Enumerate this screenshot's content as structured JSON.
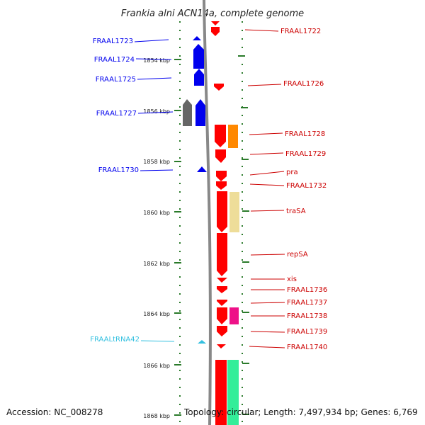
{
  "title": "Frankia alni ACN14a, complete genome",
  "footer": {
    "accession": "Accession: NC_008278",
    "topology": "Topology: circular; Length: 7,497,934 bp; Genes: 6,769"
  },
  "colors": {
    "minus_strand": "#0000ee",
    "plus_strand": "#ff0000",
    "trna": "#33c0e0",
    "tick": "#2a7a2a",
    "backbone": "#888888"
  },
  "kbp_ticks": [
    "1854 kbp",
    "1856 kbp",
    "1858 kbp",
    "1860 kbp",
    "1862 kbp",
    "1864 kbp",
    "1866 kbp",
    "1868 kbp"
  ],
  "genes_left": [
    {
      "name": "FRAAL1723",
      "color": "#0000ee"
    },
    {
      "name": "FRAAL1724",
      "color": "#0000ee"
    },
    {
      "name": "FRAAL1725",
      "color": "#0000ee"
    },
    {
      "name": "FRAAL1727",
      "color": "#0000ee"
    },
    {
      "name": "FRAAL1730",
      "color": "#0000ee"
    },
    {
      "name": "FRAALtRNA42",
      "color": "#33c0e0"
    }
  ],
  "genes_right": [
    {
      "name": "FRAAL1722"
    },
    {
      "name": "FRAAL1726"
    },
    {
      "name": "FRAAL1728"
    },
    {
      "name": "FRAAL1729"
    },
    {
      "name": "pra"
    },
    {
      "name": "FRAAL1732"
    },
    {
      "name": "traSA"
    },
    {
      "name": "repSA"
    },
    {
      "name": "xis"
    },
    {
      "name": "FRAAL1736"
    },
    {
      "name": "FRAAL1737"
    },
    {
      "name": "FRAAL1738"
    },
    {
      "name": "FRAAL1739"
    },
    {
      "name": "FRAAL1740"
    }
  ]
}
